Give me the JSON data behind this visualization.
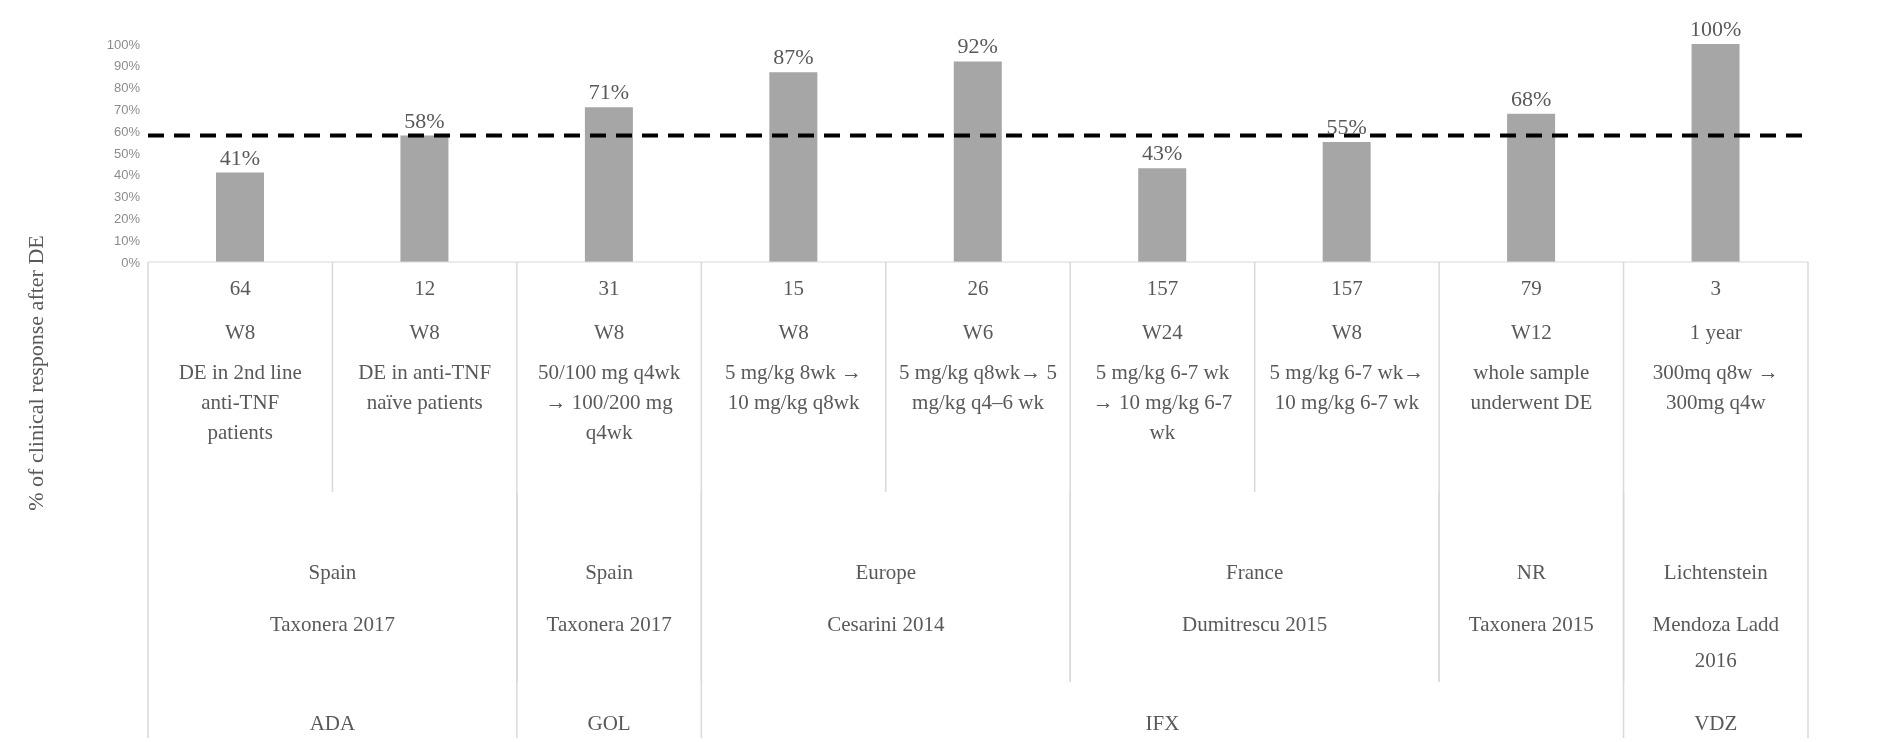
{
  "chart_data": {
    "type": "bar",
    "ylabel": "% of clinical response after DE",
    "categories": [
      "64\nW8\nDE in 2nd line anti-TNF patients",
      "12\nW8\nDE in anti-TNF naïve patients",
      "31\nW8\n50/100 mg q4wk → 100/200 mg q4wk",
      "15\nW8\n5 mg/kg 8wk → 10 mg/kg q8wk",
      "26\nW6\n5 mg/kg q8wk→ 5 mg/kg q4–6 wk",
      "157\nW24\n5 mg/kg 6-7 wk → 10 mg/kg 6-7 wk",
      "157\nW8\n5 mg/kg 6-7 wk→ 10 mg/kg 6-7 wk",
      "79\nW12\nwhole sample underwent DE",
      "3\n1 year\n300mq q8w → 300mg q4w"
    ],
    "values": [
      41,
      58,
      71,
      87,
      92,
      43,
      55,
      68,
      100
    ],
    "value_labels": [
      "41%",
      "58%",
      "71%",
      "87%",
      "92%",
      "43%",
      "55%",
      "68%",
      "100%"
    ],
    "color": "#a6a6a6",
    "ylim": [
      0,
      100
    ],
    "yticks": [
      {
        "value": 0,
        "label": "0%"
      },
      {
        "value": 10,
        "label": "10%"
      },
      {
        "value": 20,
        "label": "20%"
      },
      {
        "value": 30,
        "label": "30%"
      },
      {
        "value": 40,
        "label": "40%"
      },
      {
        "value": 50,
        "label": "50%"
      },
      {
        "value": 60,
        "label": "60%"
      },
      {
        "value": 70,
        "label": "70%"
      },
      {
        "value": 80,
        "label": "80%"
      },
      {
        "value": 90,
        "label": "90%"
      },
      {
        "value": 100,
        "label": "100%"
      }
    ],
    "ref_lines": [
      {
        "axis": "y",
        "value": 58,
        "color": "#000000",
        "line_style": "dashed"
      }
    ],
    "annotations": [
      "Spain",
      "Spain",
      "Europe",
      "France",
      "NR",
      "Lichtenstein",
      "Taxonera 2017",
      "Taxonera 2017",
      "Cesarini 2014",
      "Dumitrescu 2015",
      "Taxonera 2015",
      "Mendoza Ladd 2016",
      "ADA",
      "GOL",
      "IFX",
      "VDZ"
    ]
  }
}
